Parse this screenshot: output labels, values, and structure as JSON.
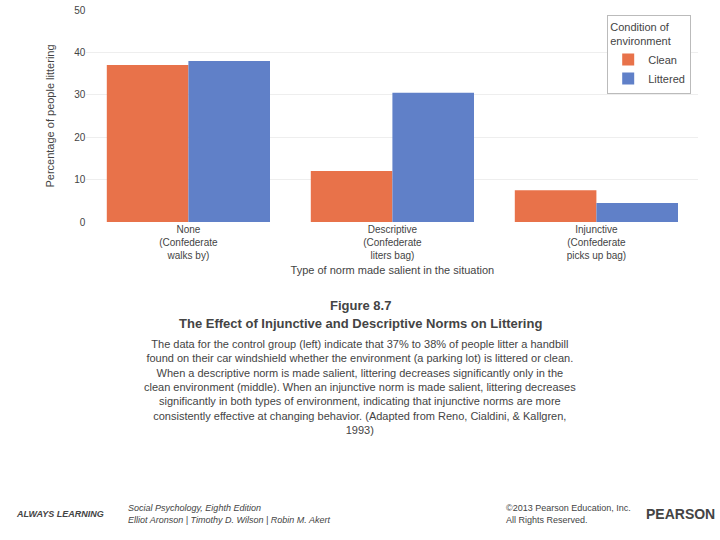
{
  "chart_data": {
    "type": "bar",
    "title": "Figure 8.7",
    "subtitle": "The Effect of Injunctive and Descriptive Norms on Littering",
    "xlabel": "Type of norm made salient in the situation",
    "ylabel": "Percentage of people littering",
    "categories": [
      "None\n(Confederate\nwalks by)",
      "Descriptive\n(Confederate\nliters bag)",
      "Injunctive\n(Confederate\npicks up bag)"
    ],
    "series": [
      {
        "name": "Clean",
        "color": "#e8724a",
        "values": [
          37,
          12,
          7.5
        ]
      },
      {
        "name": "Littered",
        "color": "#6080c8",
        "values": [
          38,
          30.5,
          4.5
        ]
      }
    ],
    "legend_title": "Condition of\nenvironment",
    "legend": "upper right",
    "ylim": [
      0,
      50
    ],
    "yticks": [
      0,
      10,
      20,
      30,
      40,
      50
    ],
    "grid": true,
    "caption": [
      "The data for the control group (left) indicate that 37% to 38% of people litter a handbill",
      "found on their car windshield whether the environment (a parking lot) is littered or clean.",
      "When a descriptive norm is made salient, littering decreases significantly only in the",
      "clean environment (middle). When an injunctive norm is made salient, littering decreases",
      "significantly in both types of environment, indicating that injunctive norms are more",
      "consistently effective at changing behavior. (Adapted from Reno, Cialdini, & Kallgren,",
      "1993)"
    ],
    "footer": [
      [
        "ALWAYS LEARNING"
      ],
      [
        "Social Psychology, Eighth Edition",
        "Elliot Aronson | Timothy D. Wilson | Robin M. Akert"
      ],
      [
        "©2013 Pearson Education, Inc.",
        "All Rights Reserved."
      ],
      [
        "PEARSON"
      ]
    ]
  }
}
